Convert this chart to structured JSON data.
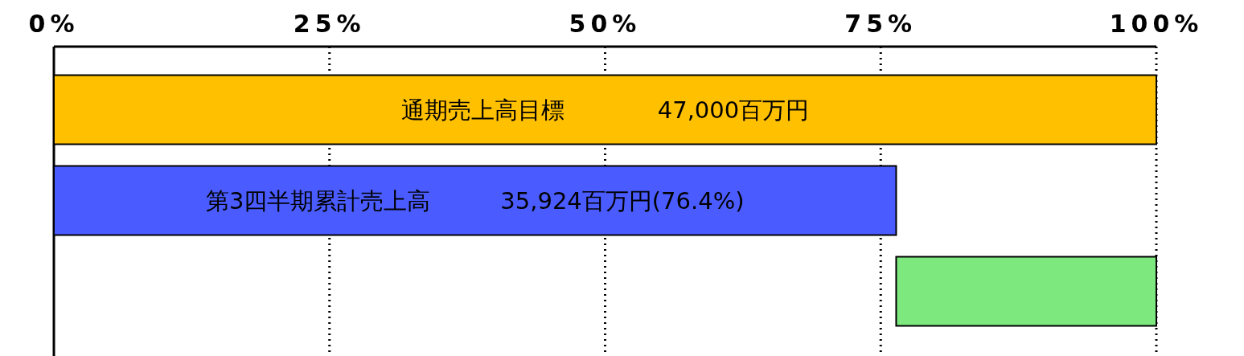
{
  "chart_data": {
    "type": "bar",
    "orientation": "horizontal",
    "categories": [
      null,
      null,
      null
    ],
    "values": [
      100,
      76.4,
      23.6
    ],
    "base": [
      0,
      0,
      76.4
    ],
    "colors": [
      "#ffc000",
      "#4a5cff",
      "#7de87d"
    ],
    "value_labels": [
      "通期売上高目標　　　　47,000百万円",
      "第3四半期累計売上高　　　35,924百万円(76.4%)",
      null
    ],
    "xlim": [
      0,
      100
    ],
    "xticks": [
      {
        "value": 0,
        "label": "0%"
      },
      {
        "value": 25,
        "label": "25%"
      },
      {
        "value": 50,
        "label": "50%"
      },
      {
        "value": 75,
        "label": "75%"
      },
      {
        "value": 100,
        "label": "100%"
      }
    ],
    "grid": "x",
    "tick_labels": "x"
  }
}
